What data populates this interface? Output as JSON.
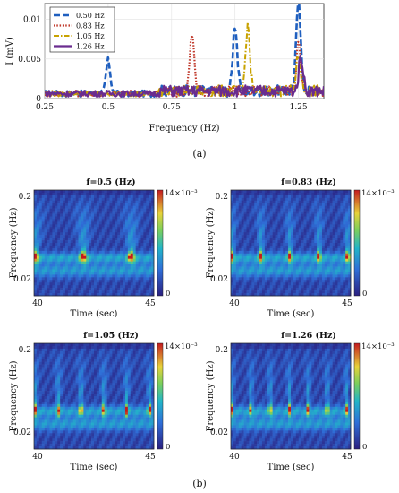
{
  "caption_a": "(a)",
  "caption_b": "(b)",
  "chart_data": [
    {
      "type": "line",
      "xlabel": "Frequency (Hz)",
      "ylabel": "I (mV)",
      "xlim": [
        0.25,
        1.35
      ],
      "ylim": [
        0,
        0.012
      ],
      "xticks": [
        "0.25",
        "0.5",
        "0.75",
        "1",
        "1.25"
      ],
      "xtick_values": [
        0.25,
        0.5,
        0.75,
        1.0,
        1.25
      ],
      "yticks": [
        "0",
        "0.005",
        "0.01"
      ],
      "ytick_values": [
        0,
        0.005,
        0.01
      ],
      "grid": true,
      "legend_position": "top-left",
      "series": [
        {
          "name": "0.50 Hz",
          "color": "#1f5fbf",
          "dash": "dashed",
          "peaks": [
            [
              0.5,
              0.0042
            ],
            [
              1.0,
              0.0085
            ],
            [
              1.25,
              0.012
            ]
          ]
        },
        {
          "name": "0.83 Hz",
          "color": "#c0392b",
          "dash": "dotted",
          "peaks": [
            [
              0.83,
              0.007
            ],
            [
              1.25,
              0.006
            ]
          ]
        },
        {
          "name": "1.05 Hz",
          "color": "#c8a200",
          "dash": "dashdot",
          "peaks": [
            [
              1.05,
              0.0082
            ],
            [
              1.25,
              0.0045
            ]
          ]
        },
        {
          "name": "1.26 Hz",
          "color": "#6a2c8f",
          "dash": "solid",
          "peaks": [
            [
              1.26,
              0.0044
            ]
          ]
        }
      ]
    },
    {
      "type": "heatmap",
      "panels": [
        {
          "title": "f=0.5 (Hz)",
          "freq": 0.5
        },
        {
          "title": "f=0.83 (Hz)",
          "freq": 0.83
        },
        {
          "title": "f=1.05 (Hz)",
          "freq": 1.05
        },
        {
          "title": "f=1.26 (Hz)",
          "freq": 1.26
        }
      ],
      "xlabel": "Time (sec)",
      "ylabel": "Frequency (Hz)",
      "xticks": [
        "40",
        "45"
      ],
      "xlim": [
        40,
        45
      ],
      "yticks": [
        "0.2",
        "0.02"
      ],
      "colorbar": {
        "min_label": "0",
        "max_label": "14×10⁻³",
        "min": 0,
        "max": 0.014
      }
    }
  ]
}
